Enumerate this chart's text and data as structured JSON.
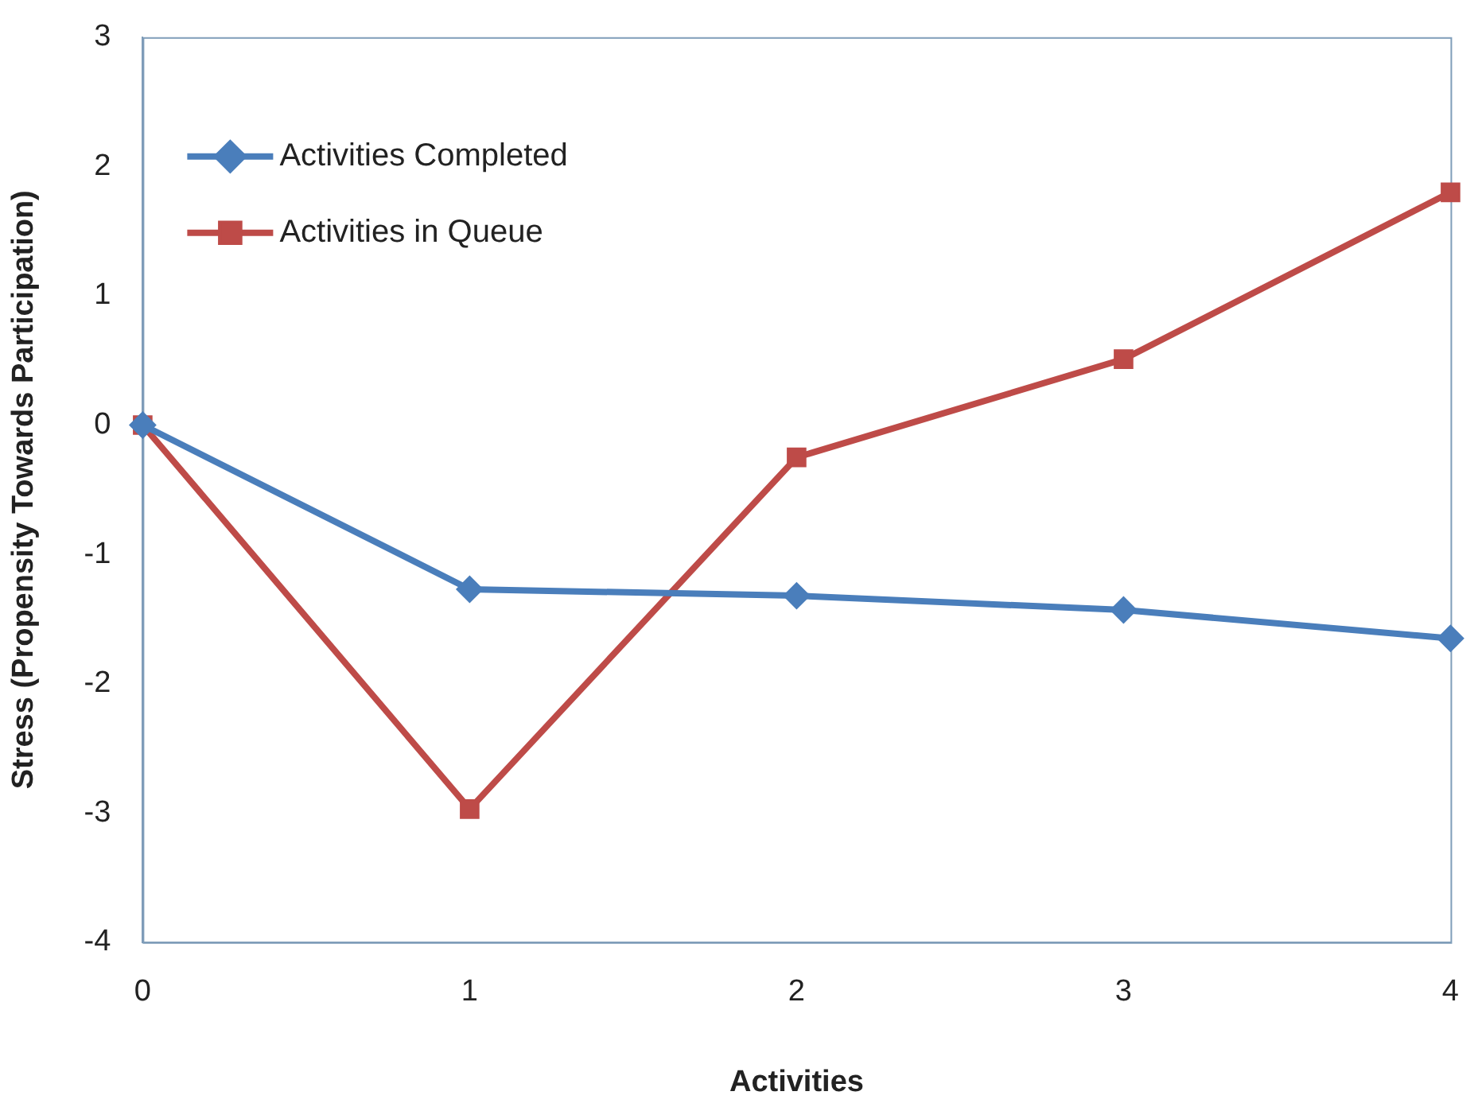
{
  "chart_data": {
    "type": "line",
    "xlabel": "Activities",
    "ylabel": "Stress (Propensity Towards Participation)",
    "x": [
      0,
      1,
      2,
      3,
      4
    ],
    "series": [
      {
        "name": "Activities Completed",
        "color": "#4a7ebb",
        "marker": "diamond",
        "values": [
          0,
          -1.27,
          -1.32,
          -1.43,
          -1.65
        ]
      },
      {
        "name": "Activities in Queue",
        "color": "#be4b48",
        "marker": "square",
        "values": [
          0,
          -2.97,
          -0.25,
          0.51,
          1.8
        ]
      }
    ],
    "xlim": [
      0,
      4
    ],
    "xticks": [
      0,
      1,
      2,
      3,
      4
    ],
    "ylim": [
      -4,
      3
    ],
    "yticks": [
      -4,
      -3,
      -2,
      -1,
      0,
      1,
      2,
      3
    ],
    "grid": false,
    "legend": "top left",
    "line_style": "solid"
  }
}
